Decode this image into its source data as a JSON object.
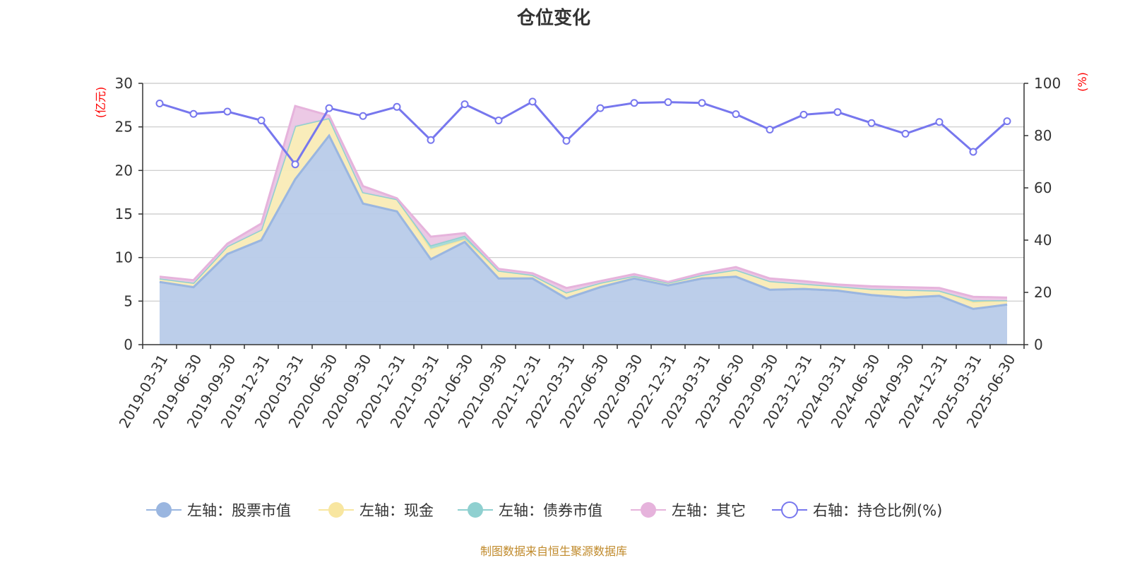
{
  "chart_data": {
    "type": "area",
    "title": "仓位变化",
    "left_axis_unit": "(亿元)",
    "right_axis_unit": "(%)",
    "left_ylim": [
      0,
      30
    ],
    "left_yticks": [
      0,
      5,
      10,
      15,
      20,
      25,
      30
    ],
    "right_ylim": [
      0,
      100
    ],
    "right_yticks": [
      0,
      20,
      40,
      60,
      80,
      100
    ],
    "grid": true,
    "legend_position": "bottom",
    "categories": [
      "2019-03-31",
      "2019-06-30",
      "2019-09-30",
      "2019-12-31",
      "2020-03-31",
      "2020-06-30",
      "2020-09-30",
      "2020-12-31",
      "2021-03-31",
      "2021-06-30",
      "2021-09-30",
      "2021-12-31",
      "2022-03-31",
      "2022-06-30",
      "2022-09-30",
      "2022-12-31",
      "2023-03-31",
      "2023-06-30",
      "2023-09-30",
      "2023-12-31",
      "2024-03-31",
      "2024-06-30",
      "2024-09-30",
      "2024-12-31",
      "2025-03-31",
      "2025-06-30"
    ],
    "series": [
      {
        "name": "左轴：股票市值",
        "axis": "left",
        "kind": "stacked-area",
        "color": "#9ab6e0",
        "fill": "#b8cbe9",
        "values": [
          7.2,
          6.6,
          10.4,
          12.0,
          19.0,
          24.0,
          16.2,
          15.3,
          9.8,
          11.8,
          7.6,
          7.6,
          5.3,
          6.6,
          7.6,
          6.8,
          7.6,
          7.8,
          6.3,
          6.4,
          6.2,
          5.7,
          5.4,
          5.6,
          4.1,
          4.6
        ]
      },
      {
        "name": "左轴：现金",
        "axis": "left",
        "kind": "stacked-area",
        "color": "#f8e6a0",
        "fill": "#f9ebb6",
        "values": [
          0.4,
          0.5,
          0.9,
          1.2,
          6.1,
          2.0,
          1.3,
          1.4,
          1.2,
          0.3,
          0.9,
          0.4,
          0.7,
          0.5,
          0.3,
          0.3,
          0.4,
          0.8,
          1.0,
          0.6,
          0.5,
          0.7,
          0.9,
          0.6,
          0.8,
          0.5
        ]
      },
      {
        "name": "左轴：债券市值",
        "axis": "left",
        "kind": "stacked-area",
        "color": "#8fd0d0",
        "fill": "#a4d9d6",
        "values": [
          0.0,
          0.0,
          0.0,
          0.0,
          0.0,
          0.0,
          0.0,
          0.0,
          0.4,
          0.4,
          0.0,
          0.0,
          0.0,
          0.0,
          0.0,
          0.0,
          0.0,
          0.0,
          0.0,
          0.0,
          0.0,
          0.0,
          0.0,
          0.0,
          0.2,
          0.0
        ]
      },
      {
        "name": "左轴：其它",
        "axis": "left",
        "kind": "stacked-area",
        "color": "#e6b3dc",
        "fill": "#ebc6e4",
        "values": [
          0.2,
          0.3,
          0.3,
          0.7,
          2.3,
          0.3,
          0.7,
          0.1,
          1.0,
          0.3,
          0.2,
          0.2,
          0.5,
          0.2,
          0.2,
          0.1,
          0.2,
          0.3,
          0.3,
          0.3,
          0.2,
          0.3,
          0.3,
          0.3,
          0.4,
          0.3
        ]
      },
      {
        "name": "右轴：持仓比例(%)",
        "axis": "right",
        "kind": "line",
        "color": "#7777ee",
        "values": [
          92.3,
          88.3,
          89.2,
          85.8,
          69.0,
          90.5,
          87.5,
          91.0,
          78.3,
          92.0,
          85.8,
          93.0,
          78.0,
          90.5,
          92.5,
          92.8,
          92.5,
          88.2,
          82.3,
          88.0,
          89.0,
          84.8,
          80.7,
          85.2,
          73.8,
          85.5
        ]
      }
    ]
  },
  "source_note": "制图数据来自恒生聚源数据库"
}
